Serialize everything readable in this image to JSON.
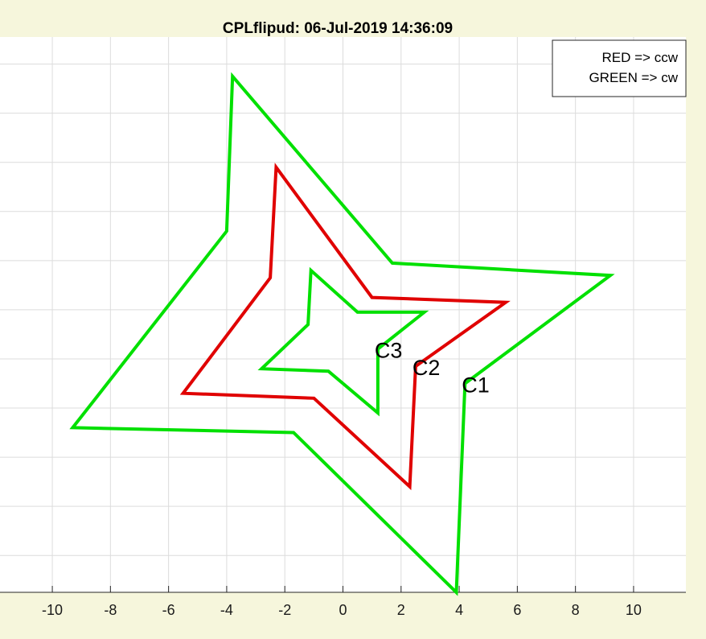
{
  "chart_data": {
    "type": "line",
    "title": "CPLflipud: 06-Jul-2019 14:36:09",
    "xlabel": "",
    "ylabel": "",
    "xlim": [
      -11.8,
      11.8
    ],
    "ylim": [
      -10.5,
      12.1
    ],
    "x_ticks": [
      -10,
      -8,
      -6,
      -4,
      -2,
      0,
      2,
      4,
      6,
      8,
      10
    ],
    "x_tick_labels": [
      "-10",
      "-8",
      "-6",
      "-4",
      "-2",
      "0",
      "2",
      "4",
      "6",
      "8",
      "10"
    ],
    "y_gridlines": [
      -9,
      -7,
      -5,
      -3,
      -1,
      1,
      3,
      5,
      7,
      9,
      11
    ],
    "grid": true,
    "legend": {
      "placement": "top-right",
      "entries": [
        "RED => ccw",
        "GREEN => cw"
      ]
    },
    "series": [
      {
        "label": "C1",
        "color": "#00e000",
        "points": [
          [
            4.2,
            -2.0
          ],
          [
            9.2,
            2.4
          ],
          [
            1.7,
            2.9
          ],
          [
            -3.8,
            10.5
          ],
          [
            -4.0,
            4.2
          ],
          [
            -9.3,
            -3.8
          ],
          [
            -1.7,
            -4.0
          ],
          [
            3.9,
            -10.5
          ],
          [
            4.2,
            -2.0
          ]
        ]
      },
      {
        "label": "C2",
        "color": "#e00000",
        "points": [
          [
            2.5,
            -1.3
          ],
          [
            5.6,
            1.3
          ],
          [
            1.0,
            1.5
          ],
          [
            -2.3,
            6.8
          ],
          [
            -2.5,
            2.3
          ],
          [
            -5.5,
            -2.4
          ],
          [
            -1.0,
            -2.6
          ],
          [
            2.3,
            -6.2
          ],
          [
            2.5,
            -1.3
          ]
        ]
      },
      {
        "label": "C3",
        "color": "#00e000",
        "points": [
          [
            1.2,
            -0.6
          ],
          [
            2.8,
            0.9
          ],
          [
            0.5,
            0.9
          ],
          [
            -1.1,
            2.6
          ],
          [
            -1.2,
            0.4
          ],
          [
            -2.8,
            -1.4
          ],
          [
            -0.5,
            -1.5
          ],
          [
            1.2,
            -3.2
          ],
          [
            1.2,
            -0.6
          ]
        ]
      }
    ],
    "annotations": [
      "C1",
      "C2",
      "C3"
    ]
  }
}
